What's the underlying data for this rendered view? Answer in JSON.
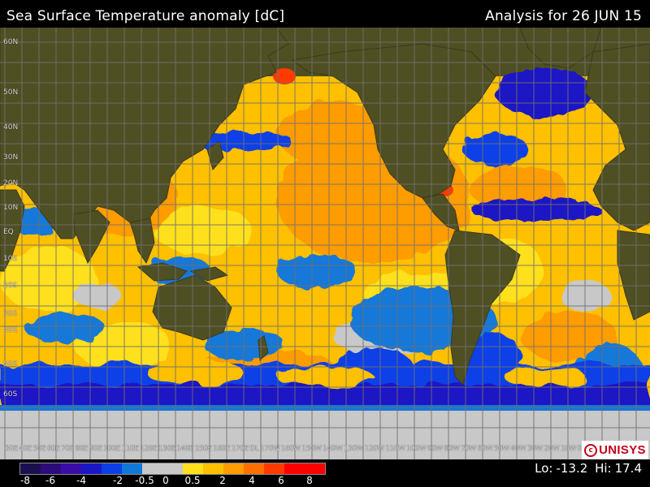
{
  "header": {
    "title": "Sea Surface Temperature anomaly [dC]",
    "analysis": "Analysis for 26 JUN 15"
  },
  "map": {
    "lat_labels": [
      "60N",
      "50N",
      "40N",
      "30N",
      "20N",
      "10N",
      "EQ",
      "10S",
      "20S",
      "30S",
      "40S",
      "50S",
      "60S"
    ],
    "lon_labels": [
      "30E",
      "40E",
      "50E",
      "60E",
      "70E",
      "80E",
      "90E",
      "100E",
      "110E",
      "120E",
      "130E",
      "140E",
      "150E",
      "160E",
      "170E",
      "DL",
      "170W",
      "160W",
      "150W",
      "140W",
      "130W",
      "120W",
      "110W",
      "100W",
      "90W",
      "80W",
      "70W",
      "60W",
      "50W",
      "40W",
      "30W",
      "20W",
      "10W",
      "0"
    ]
  },
  "logo": {
    "mark": "c",
    "text": "UNISYS"
  },
  "legend": {
    "colors": [
      "#1c0f4f",
      "#2c0c78",
      "#3c0ca6",
      "#1a18c4",
      "#0a3fe6",
      "#1278d8",
      "#c8c8c8",
      "#ffe01c",
      "#ffc000",
      "#ff9c00",
      "#ff6e00",
      "#ff3a00",
      "#ff0000"
    ],
    "ticks": [
      "-8",
      "-6",
      "-4",
      "-2",
      "-0.5",
      "0",
      "0.5",
      "2",
      "4",
      "6",
      "8"
    ]
  },
  "stats": {
    "lo_label": "Lo:",
    "lo_value": "-13.2",
    "hi_label": "Hi:",
    "hi_value": "17.4"
  }
}
